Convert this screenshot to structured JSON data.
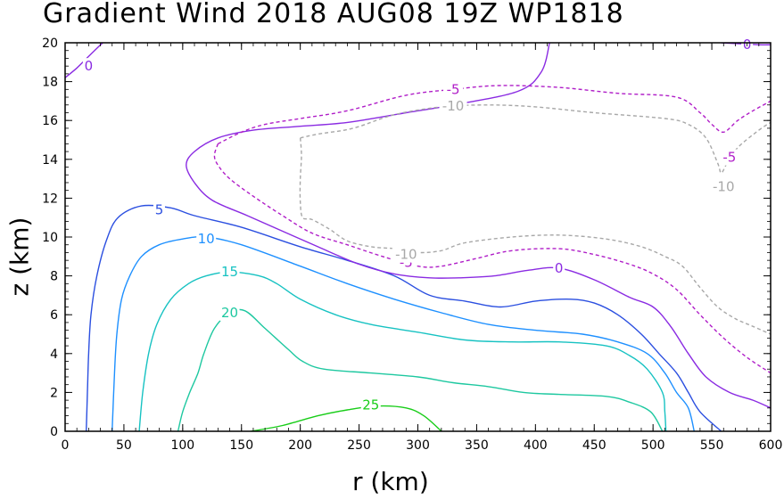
{
  "chart_data": {
    "type": "contour",
    "title": "Gradient Wind 2018 AUG08 19Z   WP1818",
    "xlabel": "r (km)",
    "ylabel": "z (km)",
    "xlim": [
      0,
      600
    ],
    "ylim": [
      0,
      20
    ],
    "x_ticks": [
      0,
      50,
      100,
      150,
      200,
      250,
      300,
      350,
      400,
      450,
      500,
      550,
      600
    ],
    "y_ticks": [
      0,
      2,
      4,
      6,
      8,
      10,
      12,
      14,
      16,
      18,
      20
    ],
    "x_minor_step": 10,
    "y_minor_step": 0.4,
    "contours": [
      {
        "level": 25,
        "label": "25",
        "color": "#19cd19",
        "dashed": false,
        "points": [
          [
            158,
            0
          ],
          [
            185,
            0.3
          ],
          [
            215,
            0.8
          ],
          [
            240,
            1.1
          ],
          [
            265,
            1.3
          ],
          [
            290,
            1.2
          ],
          [
            305,
            0.8
          ],
          [
            320,
            0
          ]
        ],
        "label_at": [
          260,
          1.35
        ]
      },
      {
        "level": 20,
        "label": "20",
        "color": "#1ec8a0",
        "dashed": false,
        "points": [
          [
            96,
            0
          ],
          [
            100,
            1
          ],
          [
            106,
            2
          ],
          [
            113,
            3
          ],
          [
            118,
            4
          ],
          [
            127,
            5.3
          ],
          [
            140,
            6.1
          ],
          [
            153,
            6.2
          ],
          [
            170,
            5.3
          ],
          [
            190,
            4.2
          ],
          [
            202,
            3.6
          ],
          [
            220,
            3.2
          ],
          [
            260,
            3.0
          ],
          [
            300,
            2.8
          ],
          [
            330,
            2.5
          ],
          [
            360,
            2.3
          ],
          [
            390,
            2.0
          ],
          [
            420,
            1.9
          ],
          [
            460,
            1.8
          ],
          [
            480,
            1.5
          ],
          [
            498,
            1.0
          ],
          [
            508,
            0
          ]
        ],
        "label_at": [
          140,
          6.1
        ]
      },
      {
        "level": 15,
        "label": "15",
        "color": "#17c2c2",
        "dashed": false,
        "points": [
          [
            63,
            0
          ],
          [
            66,
            2
          ],
          [
            71,
            4
          ],
          [
            78,
            5.5
          ],
          [
            90,
            6.8
          ],
          [
            105,
            7.6
          ],
          [
            120,
            8.0
          ],
          [
            140,
            8.2
          ],
          [
            165,
            8.0
          ],
          [
            180,
            7.6
          ],
          [
            200,
            6.8
          ],
          [
            230,
            6.0
          ],
          [
            260,
            5.5
          ],
          [
            300,
            5.1
          ],
          [
            340,
            4.7
          ],
          [
            380,
            4.6
          ],
          [
            420,
            4.6
          ],
          [
            460,
            4.4
          ],
          [
            480,
            3.9
          ],
          [
            495,
            3.2
          ],
          [
            508,
            2.0
          ],
          [
            510,
            1
          ],
          [
            511,
            0
          ]
        ],
        "label_at": [
          140,
          8.2
        ]
      },
      {
        "level": 10,
        "label": "10",
        "color": "#1e90ff",
        "dashed": false,
        "points": [
          [
            40,
            0
          ],
          [
            42,
            3
          ],
          [
            44,
            5
          ],
          [
            48,
            6.8
          ],
          [
            55,
            8.0
          ],
          [
            65,
            9.0
          ],
          [
            80,
            9.6
          ],
          [
            100,
            9.9
          ],
          [
            120,
            10.0
          ],
          [
            150,
            9.6
          ],
          [
            200,
            8.5
          ],
          [
            240,
            7.6
          ],
          [
            280,
            6.8
          ],
          [
            320,
            6.1
          ],
          [
            360,
            5.5
          ],
          [
            400,
            5.2
          ],
          [
            440,
            5.0
          ],
          [
            470,
            4.6
          ],
          [
            495,
            4.0
          ],
          [
            510,
            3.0
          ],
          [
            520,
            2.0
          ],
          [
            530,
            1.2
          ],
          [
            535,
            0
          ]
        ],
        "label_at": [
          120,
          9.9
        ]
      },
      {
        "level": 5,
        "label": "5",
        "color": "#2b4fe0",
        "dashed": false,
        "points": [
          [
            18,
            0
          ],
          [
            19,
            2
          ],
          [
            20,
            4
          ],
          [
            22,
            6
          ],
          [
            27,
            8
          ],
          [
            35,
            9.8
          ],
          [
            45,
            11.0
          ],
          [
            65,
            11.6
          ],
          [
            90,
            11.5
          ],
          [
            110,
            11.1
          ],
          [
            150,
            10.5
          ],
          [
            200,
            9.5
          ],
          [
            240,
            8.8
          ],
          [
            280,
            8.0
          ],
          [
            310,
            7.0
          ],
          [
            340,
            6.7
          ],
          [
            370,
            6.4
          ],
          [
            400,
            6.7
          ],
          [
            430,
            6.8
          ],
          [
            450,
            6.6
          ],
          [
            470,
            6.0
          ],
          [
            490,
            5.0
          ],
          [
            505,
            4.0
          ],
          [
            520,
            3.0
          ],
          [
            530,
            2.0
          ],
          [
            540,
            1.0
          ],
          [
            558,
            0
          ]
        ],
        "label_at": [
          80,
          11.4
        ]
      },
      {
        "level": 0,
        "label": "0",
        "color": "#8a2be2",
        "dashed": false,
        "points": [
          [
            0,
            18.2
          ],
          [
            10,
            18.7
          ],
          [
            20,
            19.3
          ],
          [
            32,
            20
          ]
        ],
        "label_at": [
          20,
          18.8
        ]
      },
      {
        "level": 0,
        "label": "0",
        "color": "#8a2be2",
        "dashed": false,
        "points": [
          [
            412,
            20
          ],
          [
            405,
            18.5
          ],
          [
            385,
            17.5
          ],
          [
            330,
            16.8
          ],
          [
            290,
            16.4
          ],
          [
            240,
            15.9
          ],
          [
            200,
            15.7
          ],
          [
            160,
            15.5
          ],
          [
            130,
            15.1
          ],
          [
            110,
            14.4
          ],
          [
            103,
            13.7
          ],
          [
            110,
            12.8
          ],
          [
            125,
            11.9
          ],
          [
            155,
            11.1
          ],
          [
            185,
            10.3
          ],
          [
            215,
            9.5
          ],
          [
            250,
            8.6
          ],
          [
            280,
            8.1
          ],
          [
            310,
            7.9
          ],
          [
            335,
            7.9
          ],
          [
            365,
            8.0
          ],
          [
            395,
            8.3
          ],
          [
            420,
            8.4
          ],
          [
            450,
            7.8
          ],
          [
            480,
            6.9
          ],
          [
            500,
            6.4
          ],
          [
            515,
            5.4
          ],
          [
            530,
            4.0
          ],
          [
            545,
            2.8
          ],
          [
            565,
            2.0
          ],
          [
            585,
            1.6
          ],
          [
            600,
            1.2
          ]
        ],
        "label_at": [
          420,
          8.4
        ]
      },
      {
        "level": 0,
        "label": "0",
        "color": "#8a2be2",
        "dashed": false,
        "points": [
          [
            558,
            20
          ],
          [
            590,
            19.9
          ],
          [
            600,
            19.9
          ]
        ],
        "label_at": [
          580,
          19.9
        ]
      },
      {
        "level": -5,
        "label": "-5",
        "color": "#b01ec8",
        "dashed": true,
        "points": [
          [
            130,
            14.8
          ],
          [
            150,
            15.4
          ],
          [
            170,
            15.8
          ],
          [
            200,
            16.1
          ],
          [
            240,
            16.5
          ],
          [
            290,
            17.3
          ],
          [
            330,
            17.6
          ],
          [
            370,
            17.8
          ],
          [
            420,
            17.7
          ],
          [
            470,
            17.4
          ],
          [
            520,
            17.2
          ],
          [
            540,
            16.4
          ],
          [
            550,
            15.8
          ],
          [
            560,
            15.4
          ],
          [
            572,
            16.0
          ],
          [
            585,
            16.5
          ],
          [
            600,
            17.0
          ]
        ],
        "label_at": [
          330,
          17.6
        ]
      },
      {
        "level": -5,
        "label": "-5",
        "color": "#b01ec8",
        "dashed": true,
        "points": [
          [
            130,
            14.8
          ],
          [
            127,
            14.2
          ],
          [
            130,
            13.7
          ],
          [
            140,
            13.0
          ],
          [
            160,
            12.1
          ],
          [
            185,
            11.1
          ],
          [
            210,
            10.2
          ],
          [
            240,
            9.6
          ],
          [
            270,
            9.0
          ],
          [
            300,
            8.5
          ],
          [
            320,
            8.5
          ],
          [
            350,
            8.9
          ],
          [
            380,
            9.3
          ],
          [
            420,
            9.4
          ],
          [
            450,
            9.1
          ],
          [
            480,
            8.6
          ],
          [
            500,
            8.1
          ],
          [
            520,
            7.3
          ],
          [
            540,
            6.0
          ],
          [
            560,
            4.8
          ],
          [
            580,
            3.8
          ],
          [
            600,
            3.0
          ]
        ],
        "label_at": [
          290,
          8.7
        ]
      },
      {
        "level": -10,
        "label": "-10",
        "color": "#a8a8a8",
        "dashed": true,
        "points": [
          [
            200,
            15.1
          ],
          [
            215,
            15.3
          ],
          [
            245,
            15.6
          ],
          [
            280,
            16.3
          ],
          [
            320,
            16.7
          ],
          [
            360,
            16.8
          ],
          [
            400,
            16.7
          ],
          [
            450,
            16.4
          ],
          [
            510,
            16.1
          ],
          [
            530,
            15.8
          ],
          [
            545,
            15.1
          ],
          [
            555,
            13.8
          ],
          [
            558,
            13.3
          ],
          [
            563,
            13.8
          ],
          [
            572,
            14.6
          ],
          [
            590,
            15.5
          ],
          [
            600,
            15.9
          ]
        ],
        "label_at": [
          330,
          16.75
        ]
      },
      {
        "level": -10,
        "label": "-10",
        "color": "#a8a8a8",
        "dashed": true,
        "points": [
          [
            200,
            15.1
          ],
          [
            201,
            14.2
          ],
          [
            200,
            13.0
          ],
          [
            200,
            11.8
          ],
          [
            202,
            11.0
          ],
          [
            210,
            10.9
          ],
          [
            225,
            10.4
          ],
          [
            240,
            9.8
          ],
          [
            260,
            9.5
          ],
          [
            280,
            9.4
          ],
          [
            300,
            9.2
          ],
          [
            320,
            9.3
          ],
          [
            340,
            9.7
          ],
          [
            380,
            10.0
          ],
          [
            420,
            10.1
          ],
          [
            460,
            9.9
          ],
          [
            490,
            9.5
          ],
          [
            510,
            9.0
          ],
          [
            525,
            8.5
          ],
          [
            540,
            7.4
          ],
          [
            555,
            6.4
          ],
          [
            570,
            5.8
          ],
          [
            585,
            5.4
          ],
          [
            600,
            5.0
          ]
        ],
        "label_at": [
          290,
          9.1
        ]
      }
    ],
    "extra_labels": [
      {
        "text": "-5",
        "color": "#b01ec8",
        "at": [
          565,
          14.1
        ]
      },
      {
        "text": "-10",
        "color": "#a8a8a8",
        "at": [
          560,
          12.6
        ]
      }
    ]
  }
}
